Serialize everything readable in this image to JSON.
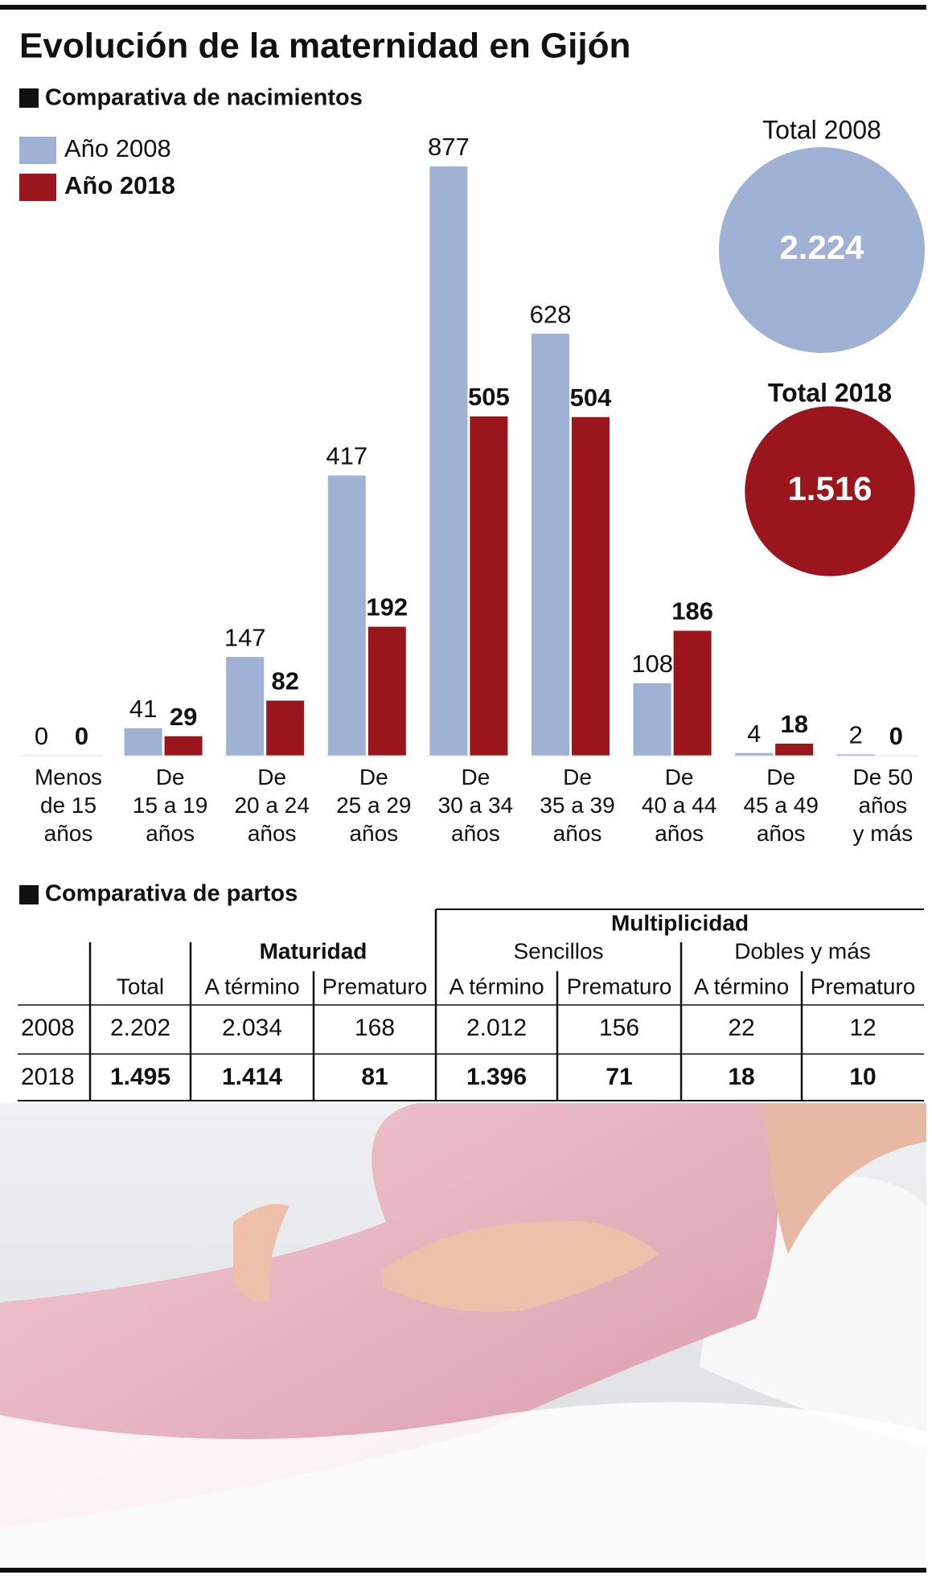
{
  "chart_data": {
    "type": "bar",
    "title": "Evolución de la maternidad en Gijón",
    "subtitle": "Comparativa de nacimientos",
    "categories": [
      "Menos de 15 años",
      "De 15 a 19 años",
      "De 20 a 24 años",
      "De 25 a 29 años",
      "De 30 a 34 años",
      "De 35 a 39 años",
      "De 40 a 44 años",
      "De 45 a 49 años",
      "De 50 años y más"
    ],
    "series": [
      {
        "name": "Año 2008",
        "color": "#9fb1d4",
        "values": [
          0,
          41,
          147,
          417,
          877,
          628,
          108,
          4,
          2
        ]
      },
      {
        "name": "Año 2018",
        "color": "#9b161c",
        "values": [
          0,
          29,
          82,
          192,
          505,
          504,
          186,
          18,
          0
        ]
      }
    ],
    "totals": [
      {
        "name": "Total 2008",
        "value": 2224,
        "value_label": "2.224",
        "color": "#9fb1d4"
      },
      {
        "name": "Total 2018",
        "value": 1516,
        "value_label": "1.516",
        "color": "#9b161c"
      }
    ]
  },
  "table": {
    "title": "Comparativa de partos",
    "group": "Multiplicidad",
    "subgroups": [
      "Maturidad",
      "Sencillos",
      "Dobles y más"
    ],
    "columns": [
      "Total",
      "A término",
      "Prematuro",
      "A término",
      "Prematuro",
      "A término",
      "Prematuro"
    ],
    "rows": [
      [
        "2008",
        "2.202",
        "2.034",
        "168",
        "2.012",
        "156",
        "22",
        "12"
      ],
      [
        "2018",
        "1.495",
        "1.414",
        "81",
        "1.396",
        "71",
        "18",
        "10"
      ]
    ]
  }
}
